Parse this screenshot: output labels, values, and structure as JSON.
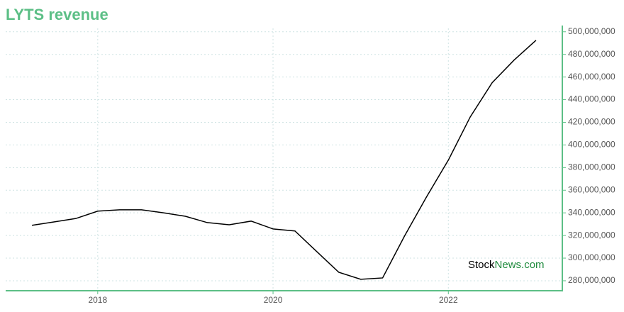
{
  "chart_data": {
    "type": "line",
    "title": "LYTS revenue",
    "watermark": [
      "Stock",
      "News.com"
    ],
    "x": [
      2017.25,
      2017.5,
      2017.75,
      2018,
      2018.25,
      2018.5,
      2018.75,
      2019,
      2019.25,
      2019.5,
      2019.75,
      2020,
      2020.25,
      2020.5,
      2020.75,
      2021,
      2021.25,
      2021.5,
      2021.75,
      2022,
      2022.25,
      2022.5,
      2022.75,
      2023
    ],
    "values": [
      329000000,
      332000000,
      335000000,
      341500000,
      342700000,
      342700000,
      340000000,
      337000000,
      331400000,
      329500000,
      332700000,
      325800000,
      324000000,
      305700000,
      287500000,
      281300000,
      282500000,
      319500000,
      354000000,
      386600000,
      424800000,
      455000000,
      475000000,
      492500000
    ],
    "color": "#000000",
    "xlim": [
      2016.95,
      2023.3
    ],
    "xticks": [
      2018,
      2020,
      2022
    ],
    "ylim": [
      271200000,
      503000000
    ],
    "yticks": [
      {
        "value": 280000000,
        "label": "280,000,000"
      },
      {
        "value": 300000000,
        "label": "300,000,000"
      },
      {
        "value": 320000000,
        "label": "320,000,000"
      },
      {
        "value": 340000000,
        "label": "340,000,000"
      },
      {
        "value": 360000000,
        "label": "360,000,000"
      },
      {
        "value": 380000000,
        "label": "380,000,000"
      },
      {
        "value": 400000000,
        "label": "400,000,000"
      },
      {
        "value": 420000000,
        "label": "420,000,000"
      },
      {
        "value": 440000000,
        "label": "440,000,000"
      },
      {
        "value": 460000000,
        "label": "460,000,000"
      },
      {
        "value": 480000000,
        "label": "480,000,000"
      },
      {
        "value": 500000000,
        "label": "500,000,000"
      }
    ],
    "grid": true
  }
}
